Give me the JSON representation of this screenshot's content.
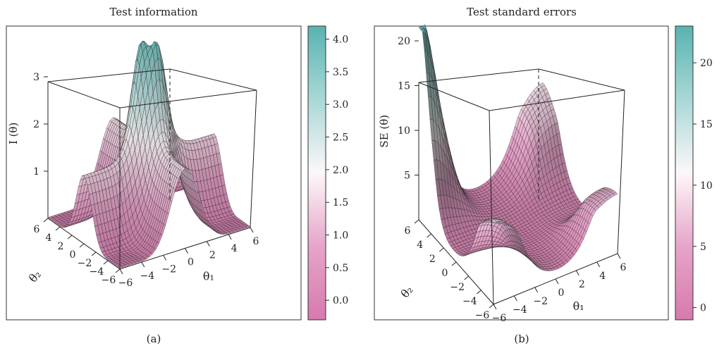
{
  "panels": [
    {
      "id": "a",
      "title": "Test information",
      "caption": "(a)",
      "chart_data": {
        "type": "surface",
        "title": "Test information",
        "zlabel": "I (θ)",
        "xlabel": "θ₁",
        "ylabel": "θ₂",
        "x_range": [
          -6,
          6
        ],
        "y_range": [
          -6,
          6
        ],
        "z_range": [
          0,
          3.9
        ],
        "x_ticks": [
          -6,
          -4,
          -2,
          0,
          2,
          4,
          6
        ],
        "y_ticks": [
          -6,
          -4,
          -2,
          0,
          2,
          4,
          6
        ],
        "z_ticks": [
          1,
          2,
          3
        ],
        "colorbar": {
          "range": [
            -0.3,
            4.2
          ],
          "ticks": [
            0.0,
            0.5,
            1.0,
            1.5,
            2.0,
            2.5,
            3.0,
            3.5,
            4.0
          ],
          "tick_labels": [
            "0.0",
            "0.5",
            "1.0",
            "1.5",
            "2.0",
            "2.5",
            "3.0",
            "3.5",
            "4.0"
          ]
        },
        "description_of_surface": "Two ridges along θ1≈0 and θ2≈0, highest double peak near origin at about 3.8, plateau ~1.7 along back ridge, near 0 at corners",
        "key_points": [
          {
            "theta1": -0.5,
            "theta2": 0.5,
            "z": 3.8
          },
          {
            "theta1": 0.5,
            "theta2": -0.5,
            "z": 3.8
          },
          {
            "theta1": 0,
            "theta2": 5,
            "z": 1.7
          },
          {
            "theta1": 5,
            "theta2": 0,
            "z": 1.2
          },
          {
            "theta1": -6,
            "theta2": -6,
            "z": 0.0
          },
          {
            "theta1": 6,
            "theta2": 6,
            "z": 0.0
          }
        ],
        "grid_on": false
      }
    },
    {
      "id": "b",
      "title": "Test standard errors",
      "caption": "(b)",
      "chart_data": {
        "type": "surface",
        "title": "Test standard errors",
        "zlabel": "SE (θ)",
        "xlabel": "θ₁",
        "ylabel": "θ₂",
        "x_range": [
          -6,
          6
        ],
        "y_range": [
          -6,
          6
        ],
        "z_range": [
          0,
          22
        ],
        "x_ticks": [
          -6,
          -4,
          -2,
          0,
          2,
          4,
          6
        ],
        "y_ticks": [
          -6,
          -4,
          -2,
          0,
          2,
          4,
          6
        ],
        "z_ticks": [
          5,
          10,
          15,
          20
        ],
        "colorbar": {
          "range": [
            -1,
            23
          ],
          "ticks": [
            0,
            5,
            10,
            15,
            20
          ],
          "tick_labels": [
            "0",
            "5",
            "10",
            "15",
            "20"
          ]
        },
        "description_of_surface": "Low valley near 0.5-2 along the axes, rising at corners; sharp peak at (θ1=-6, θ2=6) about 20, other corners about 7-8",
        "key_points": [
          {
            "theta1": -6,
            "theta2": 6,
            "z": 20.5
          },
          {
            "theta1": 6,
            "theta2": 6,
            "z": 8.0
          },
          {
            "theta1": -6,
            "theta2": -6,
            "z": 7.5
          },
          {
            "theta1": 6,
            "theta2": -6,
            "z": 4.5
          },
          {
            "theta1": 0,
            "theta2": 0,
            "z": 0.6
          }
        ],
        "grid_on": false
      }
    }
  ]
}
